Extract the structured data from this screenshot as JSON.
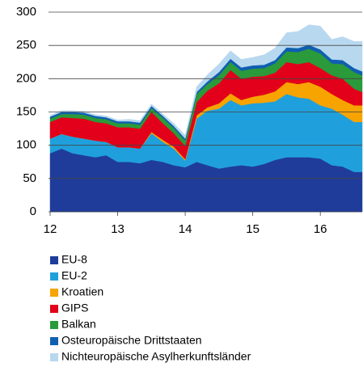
{
  "chart_data": {
    "type": "stacked_area",
    "x": [
      12,
      12.17,
      12.33,
      12.5,
      12.67,
      12.83,
      13,
      13.17,
      13.33,
      13.5,
      13.67,
      13.83,
      14,
      14.17,
      14.33,
      14.5,
      14.67,
      14.83,
      15,
      15.17,
      15.33,
      15.5,
      15.67,
      15.83,
      16,
      16.17,
      16.33,
      16.5,
      16.62
    ],
    "xlim": [
      12,
      16.62
    ],
    "xticks": [
      12,
      13,
      14,
      15,
      16
    ],
    "ylim": [
      0,
      300
    ],
    "yticks": [
      0,
      50,
      100,
      150,
      200,
      250,
      300
    ],
    "grid": true,
    "series": [
      {
        "name": "EU-8",
        "color": "#1f3c9a",
        "values": [
          88,
          95,
          88,
          85,
          82,
          85,
          75,
          75,
          73,
          78,
          75,
          70,
          67,
          75,
          70,
          65,
          68,
          70,
          68,
          72,
          78,
          82,
          82,
          82,
          80,
          70,
          68,
          60,
          60
        ]
      },
      {
        "name": "EU-2",
        "color": "#1fa0dc",
        "values": [
          22,
          22,
          25,
          25,
          25,
          20,
          22,
          22,
          22,
          40,
          30,
          25,
          10,
          65,
          82,
          90,
          100,
          90,
          95,
          92,
          88,
          95,
          90,
          88,
          80,
          85,
          78,
          75,
          75
        ]
      },
      {
        "name": "Kroatien",
        "color": "#f7a300",
        "values": [
          0,
          0,
          0,
          0,
          0,
          0,
          0,
          0,
          0,
          2,
          3,
          3,
          2,
          5,
          5,
          8,
          10,
          8,
          10,
          12,
          15,
          18,
          20,
          25,
          28,
          22,
          22,
          25,
          25
        ]
      },
      {
        "name": "GIPS",
        "color": "#e2001a",
        "values": [
          25,
          25,
          28,
          30,
          28,
          28,
          30,
          30,
          30,
          30,
          25,
          20,
          20,
          20,
          25,
          30,
          35,
          32,
          30,
          28,
          28,
          30,
          30,
          30,
          28,
          28,
          32,
          25,
          20
        ]
      },
      {
        "name": "Balkan",
        "color": "#2b9a3a",
        "values": [
          5,
          5,
          6,
          6,
          6,
          6,
          6,
          6,
          6,
          6,
          8,
          8,
          8,
          12,
          10,
          12,
          12,
          12,
          12,
          12,
          14,
          16,
          18,
          20,
          22,
          18,
          22,
          25,
          25
        ]
      },
      {
        "name": "Osteuropäische Drittstaaten",
        "color": "#0f5fb0",
        "values": [
          3,
          3,
          3,
          3,
          3,
          3,
          3,
          3,
          3,
          3,
          3,
          3,
          3,
          3,
          4,
          5,
          5,
          5,
          5,
          5,
          5,
          6,
          6,
          6,
          6,
          6,
          6,
          6,
          6
        ]
      },
      {
        "name": "Nichteuropäische Asylherkunftsländer",
        "color": "#b8d8f0",
        "values": [
          2,
          2,
          2,
          2,
          2,
          2,
          2,
          3,
          3,
          3,
          3,
          4,
          5,
          8,
          10,
          12,
          12,
          12,
          12,
          15,
          18,
          22,
          25,
          30,
          35,
          30,
          35,
          40,
          45
        ]
      }
    ]
  }
}
